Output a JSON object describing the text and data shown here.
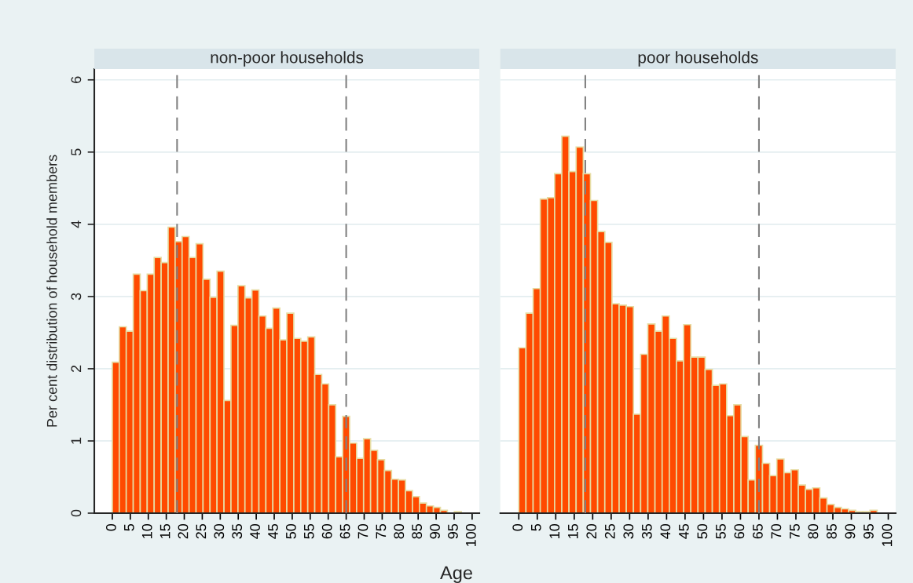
{
  "chart_data": [
    {
      "type": "histogram",
      "title": "non-poor households",
      "ylabel": "Per cent distribution of household members",
      "xlabel": "Age",
      "color": "#ff4a00",
      "bins": [
        0,
        1.94,
        3.88,
        5.82,
        7.76,
        9.7,
        11.64,
        13.58,
        15.52,
        17.46,
        19.4,
        21.34,
        23.28,
        25.22,
        27.16,
        29.1,
        31.04,
        32.98,
        34.92,
        36.86,
        38.8,
        40.74,
        42.68,
        44.62,
        46.56,
        48.5,
        50.44,
        52.38,
        54.32,
        56.26,
        58.2,
        60.14,
        62.08,
        64.02,
        65.96,
        67.9,
        69.84,
        71.78,
        73.72,
        75.66,
        77.6,
        79.54,
        81.48,
        83.42,
        85.36,
        87.3,
        89.24,
        91.18,
        93.12,
        95.06,
        97
      ],
      "values": [
        2.09,
        2.58,
        2.52,
        3.31,
        3.08,
        3.31,
        3.54,
        3.47,
        3.96,
        3.76,
        3.83,
        3.54,
        3.73,
        3.24,
        2.99,
        3.35,
        1.56,
        2.6,
        3.15,
        2.98,
        3.09,
        2.73,
        2.56,
        2.84,
        2.4,
        2.77,
        2.42,
        2.38,
        2.44,
        1.92,
        1.79,
        1.5,
        0.78,
        1.34,
        0.97,
        0.76,
        1.03,
        0.87,
        0.74,
        0.59,
        0.47,
        0.46,
        0.31,
        0.23,
        0.14,
        0.1,
        0.08,
        0.04,
        null,
        0.02
      ],
      "xlim": [
        -5,
        102
      ],
      "xticks": [
        0,
        5,
        10,
        15,
        20,
        25,
        30,
        35,
        40,
        45,
        50,
        55,
        60,
        65,
        70,
        75,
        80,
        85,
        90,
        95,
        100
      ],
      "ylim": [
        0,
        6.15
      ],
      "yticks": [
        0,
        1,
        2,
        3,
        4,
        5,
        6
      ],
      "grid": "y",
      "ref_lines": [
        {
          "axis": "x",
          "value": 18,
          "color": "#808080",
          "line_style": "dashed"
        },
        {
          "axis": "x",
          "value": 65,
          "color": "#808080",
          "line_style": "dashed"
        }
      ]
    },
    {
      "type": "histogram",
      "title": "poor households",
      "color": "#ff4a00",
      "bins": [
        0,
        1.94,
        3.88,
        5.82,
        7.76,
        9.7,
        11.64,
        13.58,
        15.52,
        17.46,
        19.4,
        21.34,
        23.28,
        25.22,
        27.16,
        29.1,
        31.04,
        32.98,
        34.92,
        36.86,
        38.8,
        40.74,
        42.68,
        44.62,
        46.56,
        48.5,
        50.44,
        52.38,
        54.32,
        56.26,
        58.2,
        60.14,
        62.08,
        64.02,
        65.96,
        67.9,
        69.84,
        71.78,
        73.72,
        75.66,
        77.6,
        79.54,
        81.48,
        83.42,
        85.36,
        87.3,
        89.24,
        91.18,
        93.12,
        95.06,
        97
      ],
      "values": [
        2.29,
        2.77,
        3.11,
        4.35,
        4.37,
        4.7,
        5.22,
        4.73,
        5.07,
        4.7,
        4.33,
        3.9,
        3.75,
        2.9,
        2.88,
        2.86,
        1.37,
        2.2,
        2.62,
        2.52,
        2.73,
        2.42,
        2.11,
        2.61,
        2.16,
        2.16,
        1.99,
        1.77,
        1.79,
        1.35,
        1.5,
        1.06,
        0.46,
        0.94,
        0.69,
        0.52,
        0.75,
        0.56,
        0.6,
        0.39,
        0.33,
        0.35,
        0.21,
        0.12,
        0.08,
        0.06,
        0.04,
        0.02,
        0.02,
        0.04
      ],
      "xlim": [
        -5,
        102
      ],
      "xticks": [
        0,
        5,
        10,
        15,
        20,
        25,
        30,
        35,
        40,
        45,
        50,
        55,
        60,
        65,
        70,
        75,
        80,
        85,
        90,
        95,
        100
      ],
      "ylim": [
        0,
        6.15
      ],
      "yticks": [
        0,
        1,
        2,
        3,
        4,
        5,
        6
      ],
      "grid": "y",
      "tick_labels": "x",
      "ref_lines": [
        {
          "axis": "x",
          "value": 18,
          "color": "#808080",
          "line_style": "dashed"
        },
        {
          "axis": "x",
          "value": 65,
          "color": "#808080",
          "line_style": "dashed"
        }
      ]
    }
  ]
}
